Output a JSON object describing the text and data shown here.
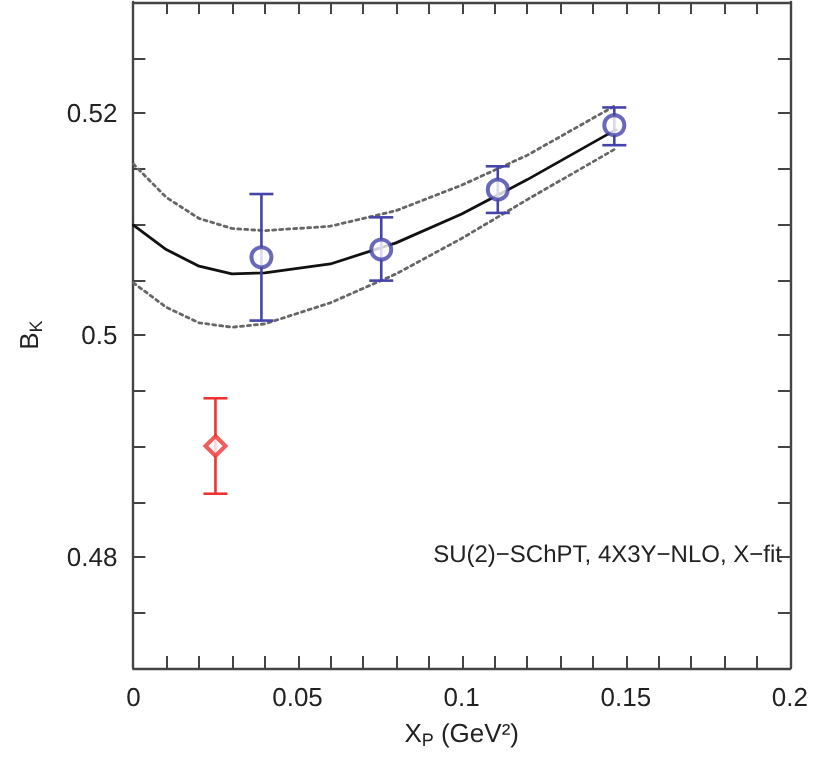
{
  "chart_data": {
    "type": "scatter",
    "xlabel": "X$_{P}$ (GeV²)",
    "ylabel": "B$_{K}$",
    "annotations": [
      "SU(2)−SChPT, 4X3Y−NLO, X−fit"
    ],
    "xlim": [
      0,
      0.2
    ],
    "ylim": [
      0.47,
      0.53
    ],
    "xticks": [
      0,
      {
        "value": 0.01,
        "label": null
      },
      {
        "value": 0.02,
        "label": null
      },
      {
        "value": 0.03,
        "label": null
      },
      {
        "value": 0.04,
        "label": null
      },
      0.05,
      {
        "value": 0.06,
        "label": null
      },
      {
        "value": 0.07,
        "label": null
      },
      {
        "value": 0.08,
        "label": null
      },
      {
        "value": 0.09,
        "label": null
      },
      0.1,
      {
        "value": 0.11,
        "label": null
      },
      {
        "value": 0.12,
        "label": null
      },
      {
        "value": 0.13,
        "label": null
      },
      {
        "value": 0.14,
        "label": null
      },
      0.15,
      {
        "value": 0.16,
        "label": null
      },
      {
        "value": 0.17,
        "label": null
      },
      {
        "value": 0.18,
        "label": null
      },
      {
        "value": 0.19,
        "label": null
      },
      0.2
    ],
    "yticks": [
      {
        "value": 0.475,
        "label": null
      },
      0.48,
      {
        "value": 0.485,
        "label": null
      },
      {
        "value": 0.49,
        "label": null
      },
      {
        "value": 0.495,
        "label": null
      },
      0.5,
      {
        "value": 0.505,
        "label": null
      },
      {
        "value": 0.51,
        "label": null
      },
      {
        "value": 0.515,
        "label": null
      },
      0.52,
      {
        "value": 0.525,
        "label": null
      }
    ],
    "grid": false,
    "series": [
      {
        "type": "line",
        "color": "#666666",
        "line_style": "dotted",
        "marker": "none",
        "x": [
          0,
          0.01,
          0.02,
          0.03,
          0.04,
          0.06,
          0.08,
          0.1,
          0.12,
          0.147
        ],
        "values": [
          0.5154,
          0.5124,
          0.5105,
          0.5096,
          0.5094,
          0.5098,
          0.5112,
          0.5135,
          0.5162,
          0.5207
        ]
      },
      {
        "type": "line",
        "color": "#666666",
        "line_style": "dotted",
        "marker": "none",
        "x": [
          0,
          0.01,
          0.02,
          0.03,
          0.04,
          0.06,
          0.08,
          0.1,
          0.12,
          0.147
        ],
        "values": [
          0.5047,
          0.5025,
          0.5011,
          0.5007,
          0.501,
          0.5029,
          0.5055,
          0.5087,
          0.5122,
          0.5168
        ]
      },
      {
        "type": "line",
        "color": "#111111",
        "line_style": "solid",
        "marker": "none",
        "x": [
          0,
          0.01,
          0.02,
          0.03,
          0.04,
          0.06,
          0.08,
          0.1,
          0.12,
          0.147
        ],
        "values": [
          0.5099,
          0.5077,
          0.5062,
          0.5055,
          0.5056,
          0.5064,
          0.5083,
          0.5109,
          0.514,
          0.5185
        ]
      },
      {
        "color": "#4444aa",
        "marker": "circle",
        "x": [
          0.039,
          0.0755,
          0.111,
          0.1465
        ],
        "values": [
          0.507,
          0.5077,
          0.5131,
          0.5189
        ],
        "errors": [
          [
            0.5013,
            0.5127
          ],
          [
            0.5049,
            0.5106
          ],
          [
            0.511,
            0.5152
          ],
          [
            0.5171,
            0.5205
          ]
        ]
      },
      {
        "color": "#ee3333",
        "marker": "diamond",
        "x": [
          0.025
        ],
        "values": [
          0.49
        ],
        "errors": [
          [
            0.4857,
            0.4943
          ]
        ]
      }
    ]
  }
}
